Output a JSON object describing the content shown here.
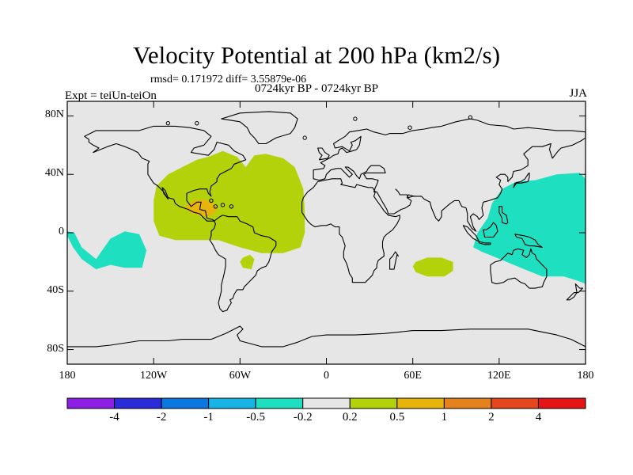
{
  "chart_data": {
    "type": "contour-map",
    "title": "Velocity Potential at 200 hPa (km2/s)",
    "stats_label": "rmsd= 0.171972 diff= 3.55879e-06",
    "left_label": "Expt = teiUn-teiOn",
    "center_label": "0724kyr BP - 0724kyr BP",
    "right_label": "JJA",
    "lon_range": [
      -180,
      180
    ],
    "lat_range": [
      -90,
      90
    ],
    "x_ticks": [
      {
        "lon": -180,
        "label": "180"
      },
      {
        "lon": -120,
        "label": "120W"
      },
      {
        "lon": -60,
        "label": "60W"
      },
      {
        "lon": 0,
        "label": "0"
      },
      {
        "lon": 60,
        "label": "60E"
      },
      {
        "lon": 120,
        "label": "120E"
      },
      {
        "lon": 180,
        "label": "180"
      }
    ],
    "y_ticks": [
      {
        "lat": 80,
        "label": "80N"
      },
      {
        "lat": 40,
        "label": "40N"
      },
      {
        "lat": 0,
        "label": "0"
      },
      {
        "lat": -40,
        "label": "40S"
      },
      {
        "lat": -80,
        "label": "80S"
      }
    ],
    "colorbar": {
      "colors": [
        "#8c1ee6",
        "#2b2bd9",
        "#0a78e0",
        "#19b4e6",
        "#1ee0c0",
        "#e6e6e6",
        "#b4d20a",
        "#e6b40a",
        "#e6821e",
        "#e6461e",
        "#e61414"
      ],
      "labels": [
        {
          "boundary": 1,
          "label": "-4"
        },
        {
          "boundary": 2,
          "label": "-2"
        },
        {
          "boundary": 3,
          "label": "-1"
        },
        {
          "boundary": 4,
          "label": "-0.5"
        },
        {
          "boundary": 5,
          "label": "-0.2"
        },
        {
          "boundary": 6,
          "label": "0.2"
        },
        {
          "boundary": 7,
          "label": "0.5"
        },
        {
          "boundary": 8,
          "label": "1"
        },
        {
          "boundary": 9,
          "label": "2"
        },
        {
          "boundary": 10,
          "label": "4"
        }
      ]
    },
    "background_color": "#e6e6e6",
    "regions": [
      {
        "name": "atlantic-positive",
        "level": "0.2 to 0.5",
        "color": "#b4d20a",
        "polygon": [
          [
            -118,
            32
          ],
          [
            -110,
            40
          ],
          [
            -100,
            45
          ],
          [
            -90,
            50
          ],
          [
            -82,
            52
          ],
          [
            -72,
            56
          ],
          [
            -62,
            52
          ],
          [
            -56,
            45
          ],
          [
            -50,
            53
          ],
          [
            -42,
            54
          ],
          [
            -30,
            51
          ],
          [
            -22,
            45
          ],
          [
            -16,
            30
          ],
          [
            -15,
            14
          ],
          [
            -15,
            0
          ],
          [
            -18,
            -10
          ],
          [
            -30,
            -14
          ],
          [
            -45,
            -14
          ],
          [
            -60,
            -10
          ],
          [
            -75,
            -5
          ],
          [
            -90,
            -5
          ],
          [
            -105,
            -5
          ],
          [
            -116,
            -2
          ],
          [
            -120,
            8
          ],
          [
            -120,
            22
          ]
        ]
      },
      {
        "name": "brazil-positive",
        "level": "0.2 to 0.5",
        "color": "#b4d20a",
        "polygon": [
          [
            -58,
            -17
          ],
          [
            -53,
            -15
          ],
          [
            -50,
            -18
          ],
          [
            -52,
            -25
          ],
          [
            -58,
            -24
          ],
          [
            -60,
            -20
          ]
        ]
      },
      {
        "name": "indian-ocean-positive",
        "level": "0.2 to 0.5",
        "color": "#b4d20a",
        "polygon": [
          [
            62,
            -20
          ],
          [
            70,
            -17
          ],
          [
            80,
            -17
          ],
          [
            88,
            -20
          ],
          [
            88,
            -26
          ],
          [
            82,
            -30
          ],
          [
            70,
            -30
          ],
          [
            62,
            -27
          ],
          [
            60,
            -23
          ]
        ]
      },
      {
        "name": "central-america-positive",
        "level": "0.5 to 1",
        "color": "#e6b40a",
        "polygon": [
          [
            -98,
            18
          ],
          [
            -92,
            22
          ],
          [
            -85,
            23
          ],
          [
            -78,
            20
          ],
          [
            -76,
            15
          ],
          [
            -81,
            11
          ],
          [
            -88,
            12
          ],
          [
            -95,
            14
          ]
        ]
      },
      {
        "name": "east-pacific-negative",
        "level": "-0.5 to -0.2",
        "color": "#1ee0c0",
        "polygon": [
          [
            -180,
            -2
          ],
          [
            -176,
            -10
          ],
          [
            -170,
            -18
          ],
          [
            -160,
            -25
          ],
          [
            -150,
            -22
          ],
          [
            -140,
            -24
          ],
          [
            -128,
            -24
          ],
          [
            -125,
            -12
          ],
          [
            -130,
            -1
          ],
          [
            -140,
            1
          ],
          [
            -150,
            -4
          ],
          [
            -160,
            -18
          ],
          [
            -170,
            -10
          ],
          [
            -175,
            0
          ],
          [
            -180,
            1
          ]
        ]
      },
      {
        "name": "maritime-continent-negative",
        "level": "-0.5 to -0.2",
        "color": "#1ee0c0",
        "polygon": [
          [
            115,
            20
          ],
          [
            122,
            30
          ],
          [
            132,
            35
          ],
          [
            145,
            36
          ],
          [
            160,
            40
          ],
          [
            176,
            41
          ],
          [
            180,
            37
          ],
          [
            180,
            -35
          ],
          [
            175,
            -33
          ],
          [
            165,
            -30
          ],
          [
            150,
            -30
          ],
          [
            135,
            -24
          ],
          [
            118,
            -17
          ],
          [
            108,
            -13
          ],
          [
            102,
            -10
          ],
          [
            105,
            0
          ],
          [
            112,
            10
          ]
        ]
      }
    ]
  }
}
